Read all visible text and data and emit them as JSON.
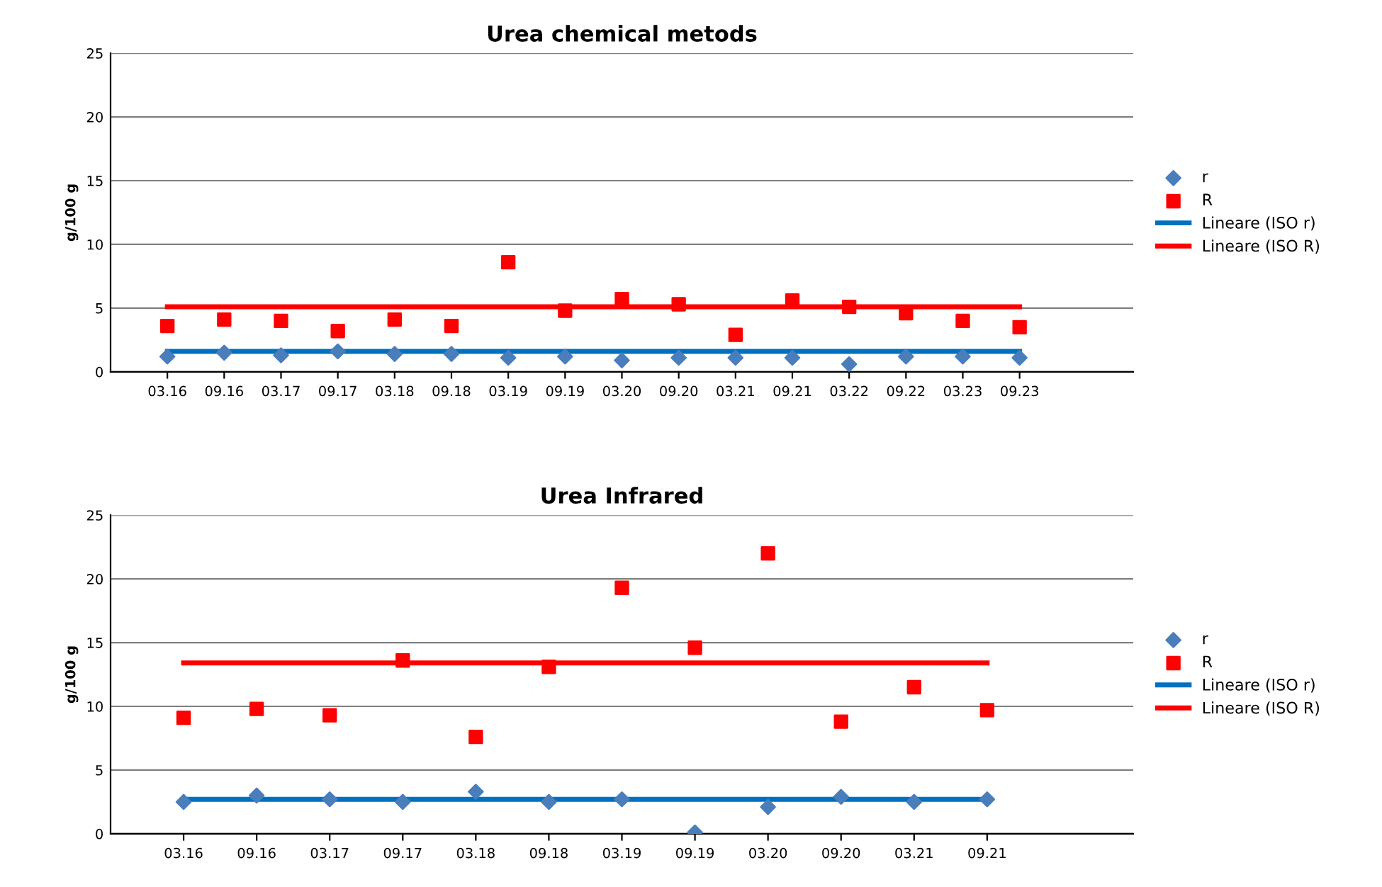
{
  "chart_data": [
    {
      "type": "scatter",
      "title": "Urea chemical metods",
      "ylabel": "g/100 g",
      "categories": [
        "03.16",
        "09.16",
        "03.17",
        "09.17",
        "03.18",
        "09.18",
        "03.19",
        "09.19",
        "03.20",
        "09.20",
        "03.21",
        "09.21",
        "03.22",
        "09.22",
        "03.23",
        "09.23"
      ],
      "series": [
        {
          "name": "r",
          "color": "#4a7ebb",
          "marker": "diamond",
          "values": [
            1.2,
            1.5,
            1.3,
            1.6,
            1.4,
            1.4,
            1.1,
            1.2,
            0.9,
            1.1,
            1.1,
            1.1,
            0.6,
            1.2,
            1.2,
            1.1
          ]
        },
        {
          "name": "R",
          "color": "#ff0000",
          "marker": "square",
          "values": [
            3.6,
            4.1,
            4.0,
            3.2,
            4.1,
            3.6,
            8.6,
            4.8,
            5.7,
            5.3,
            2.9,
            5.6,
            5.1,
            4.6,
            4.0,
            3.5
          ]
        },
        {
          "name": "Lineare (ISO r)",
          "type": "line",
          "color": "#0070c0",
          "values": [
            1.6,
            1.6,
            1.6,
            1.6,
            1.6,
            1.6,
            1.6,
            1.6,
            1.6,
            1.6,
            1.6,
            1.6,
            1.6,
            1.6,
            1.6,
            1.6
          ]
        },
        {
          "name": "Lineare (ISO R)",
          "type": "line",
          "color": "#ff0000",
          "values": [
            5.1,
            5.1,
            5.1,
            5.1,
            5.1,
            5.1,
            5.1,
            5.1,
            5.1,
            5.1,
            5.1,
            5.1,
            5.1,
            5.1,
            5.1,
            5.1
          ]
        }
      ],
      "ylim": [
        0,
        25
      ],
      "yticks": [
        0,
        5,
        10,
        15,
        20,
        25
      ],
      "grid": "y",
      "legend": "right"
    },
    {
      "type": "scatter",
      "title": "Urea Infrared",
      "ylabel": "g/100 g",
      "categories": [
        "03.16",
        "09.16",
        "03.17",
        "09.17",
        "03.18",
        "09.18",
        "03.19",
        "09.19",
        "03.20",
        "09.20",
        "03.21",
        "09.21"
      ],
      "series": [
        {
          "name": "r",
          "color": "#4a7ebb",
          "marker": "diamond",
          "values": [
            2.5,
            3.0,
            2.7,
            2.5,
            3.3,
            2.5,
            2.7,
            0.1,
            2.1,
            2.9,
            2.5,
            2.7
          ]
        },
        {
          "name": "R",
          "color": "#ff0000",
          "marker": "square",
          "values": [
            9.1,
            9.8,
            9.3,
            13.6,
            7.6,
            13.1,
            19.3,
            14.6,
            22.0,
            8.8,
            11.5,
            9.7
          ]
        },
        {
          "name": "Lineare (ISO r)",
          "type": "line",
          "color": "#0070c0",
          "values": [
            2.7,
            2.7,
            2.7,
            2.7,
            2.7,
            2.7,
            2.7,
            2.7,
            2.7,
            2.7,
            2.7,
            2.7
          ]
        },
        {
          "name": "Lineare (ISO R)",
          "type": "line",
          "color": "#ff0000",
          "values": [
            13.4,
            13.4,
            13.4,
            13.4,
            13.4,
            13.4,
            13.4,
            13.4,
            13.4,
            13.4,
            13.4,
            13.4
          ]
        }
      ],
      "ylim": [
        0,
        25
      ],
      "yticks": [
        0,
        5,
        10,
        15,
        20,
        25
      ],
      "grid": "y",
      "legend": "right"
    }
  ]
}
